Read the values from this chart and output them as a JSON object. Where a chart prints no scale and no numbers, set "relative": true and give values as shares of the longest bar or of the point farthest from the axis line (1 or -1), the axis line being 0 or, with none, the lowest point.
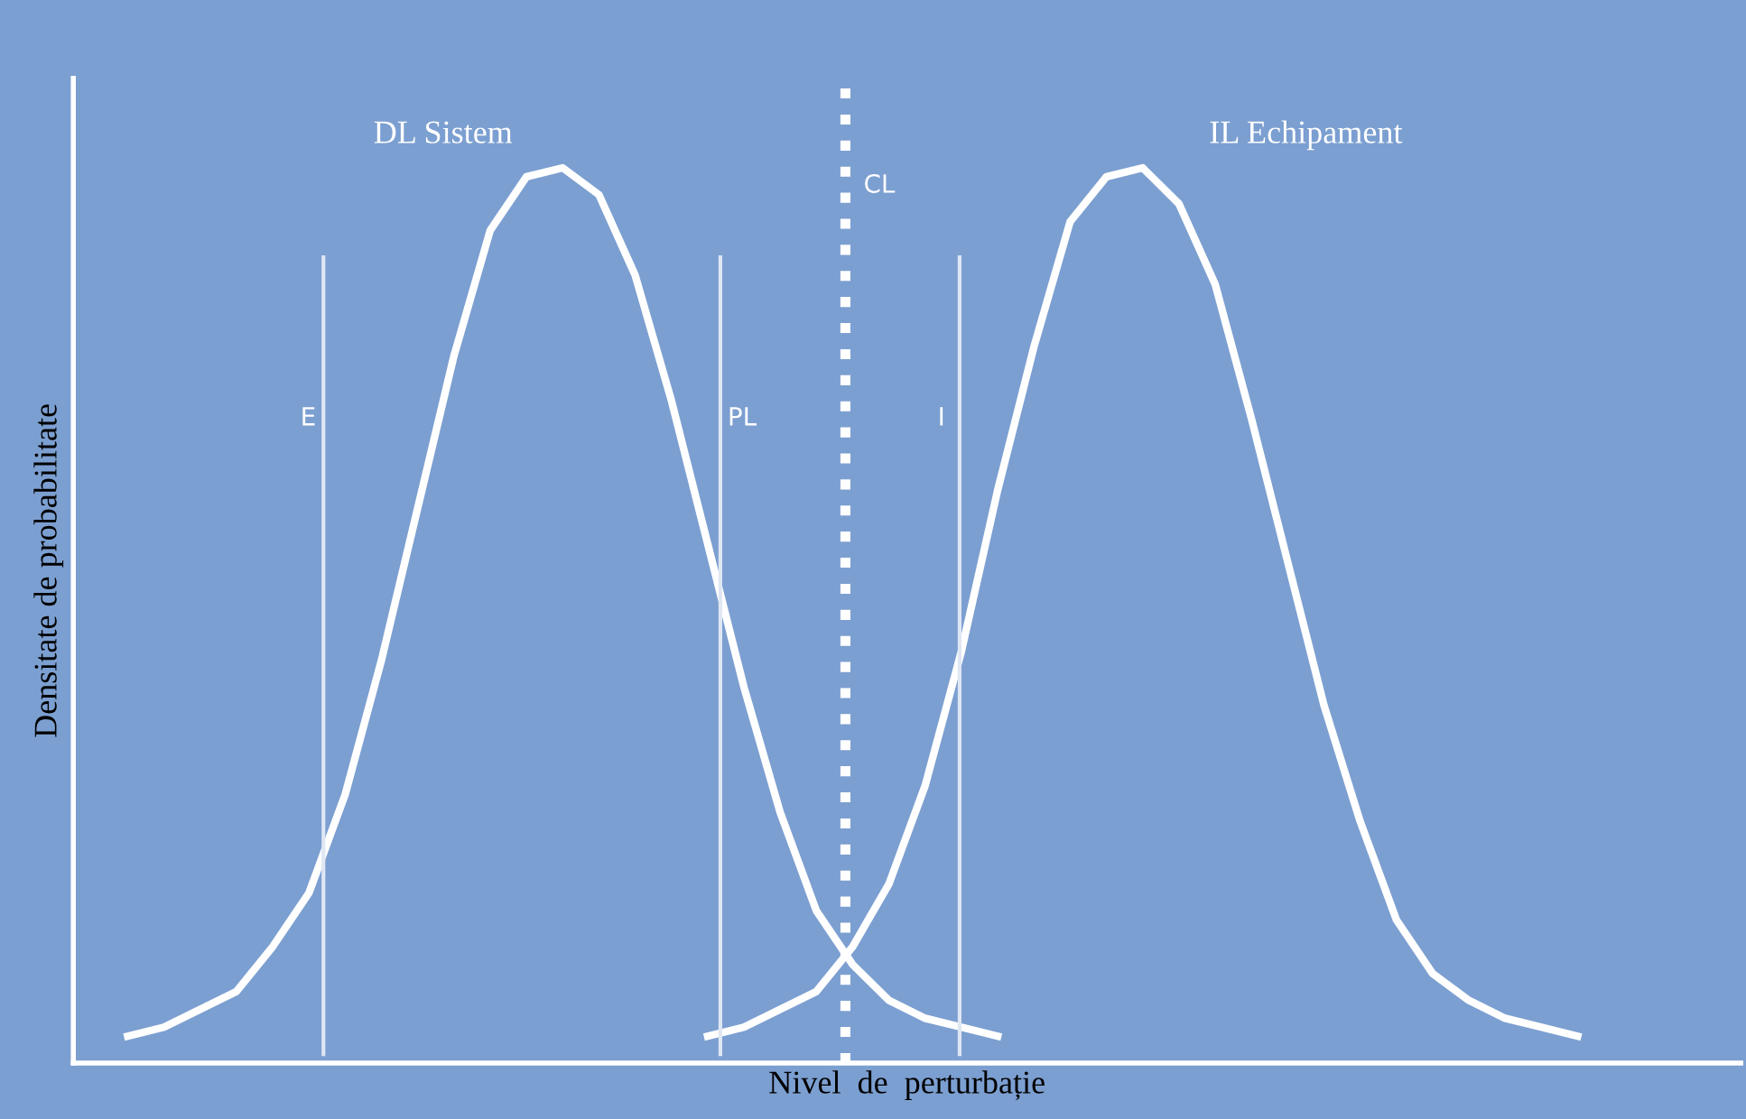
{
  "chart_data": {
    "type": "line",
    "relative": true,
    "xlabel": "Nivel  de  perturbație",
    "ylabel": "Densitate de probabilitate",
    "categories": [
      null,
      null,
      null,
      null,
      null,
      null,
      null,
      null,
      null,
      null,
      null,
      null,
      null,
      null,
      null,
      null,
      null,
      null,
      null,
      null,
      null,
      null,
      null,
      null,
      null,
      null,
      null,
      null,
      null,
      null,
      null,
      null,
      null,
      null,
      null,
      null,
      null,
      null,
      null,
      null,
      null
    ],
    "series": [
      {
        "name": "DL Sistem",
        "color": "#ffffff",
        "values": [
          0.03,
          0.04,
          0.06,
          0.08,
          0.13,
          0.19,
          0.3,
          0.45,
          0.62,
          0.79,
          0.93,
          0.99,
          1.0,
          0.97,
          0.88,
          0.74,
          0.58,
          0.42,
          0.28,
          0.17,
          0.11,
          0.07,
          0.05,
          0.04,
          0.03,
          null,
          null,
          null,
          null,
          null,
          null,
          null,
          null,
          null,
          null,
          null,
          null,
          null,
          null,
          null,
          null
        ]
      },
      {
        "name": "IL Echipament",
        "color": "#ffffff",
        "values": [
          null,
          null,
          null,
          null,
          null,
          null,
          null,
          null,
          null,
          null,
          null,
          null,
          null,
          null,
          null,
          null,
          0.03,
          0.04,
          0.06,
          0.08,
          0.13,
          0.2,
          0.31,
          0.46,
          0.64,
          0.8,
          0.94,
          0.99,
          1.0,
          0.96,
          0.87,
          0.72,
          0.56,
          0.4,
          0.27,
          0.16,
          0.1,
          0.07,
          0.05,
          0.04,
          0.03
        ]
      }
    ],
    "annotations": [
      "E",
      "PL",
      "CL",
      "I"
    ],
    "legend": false,
    "marker": "none",
    "line_style": "solid"
  }
}
